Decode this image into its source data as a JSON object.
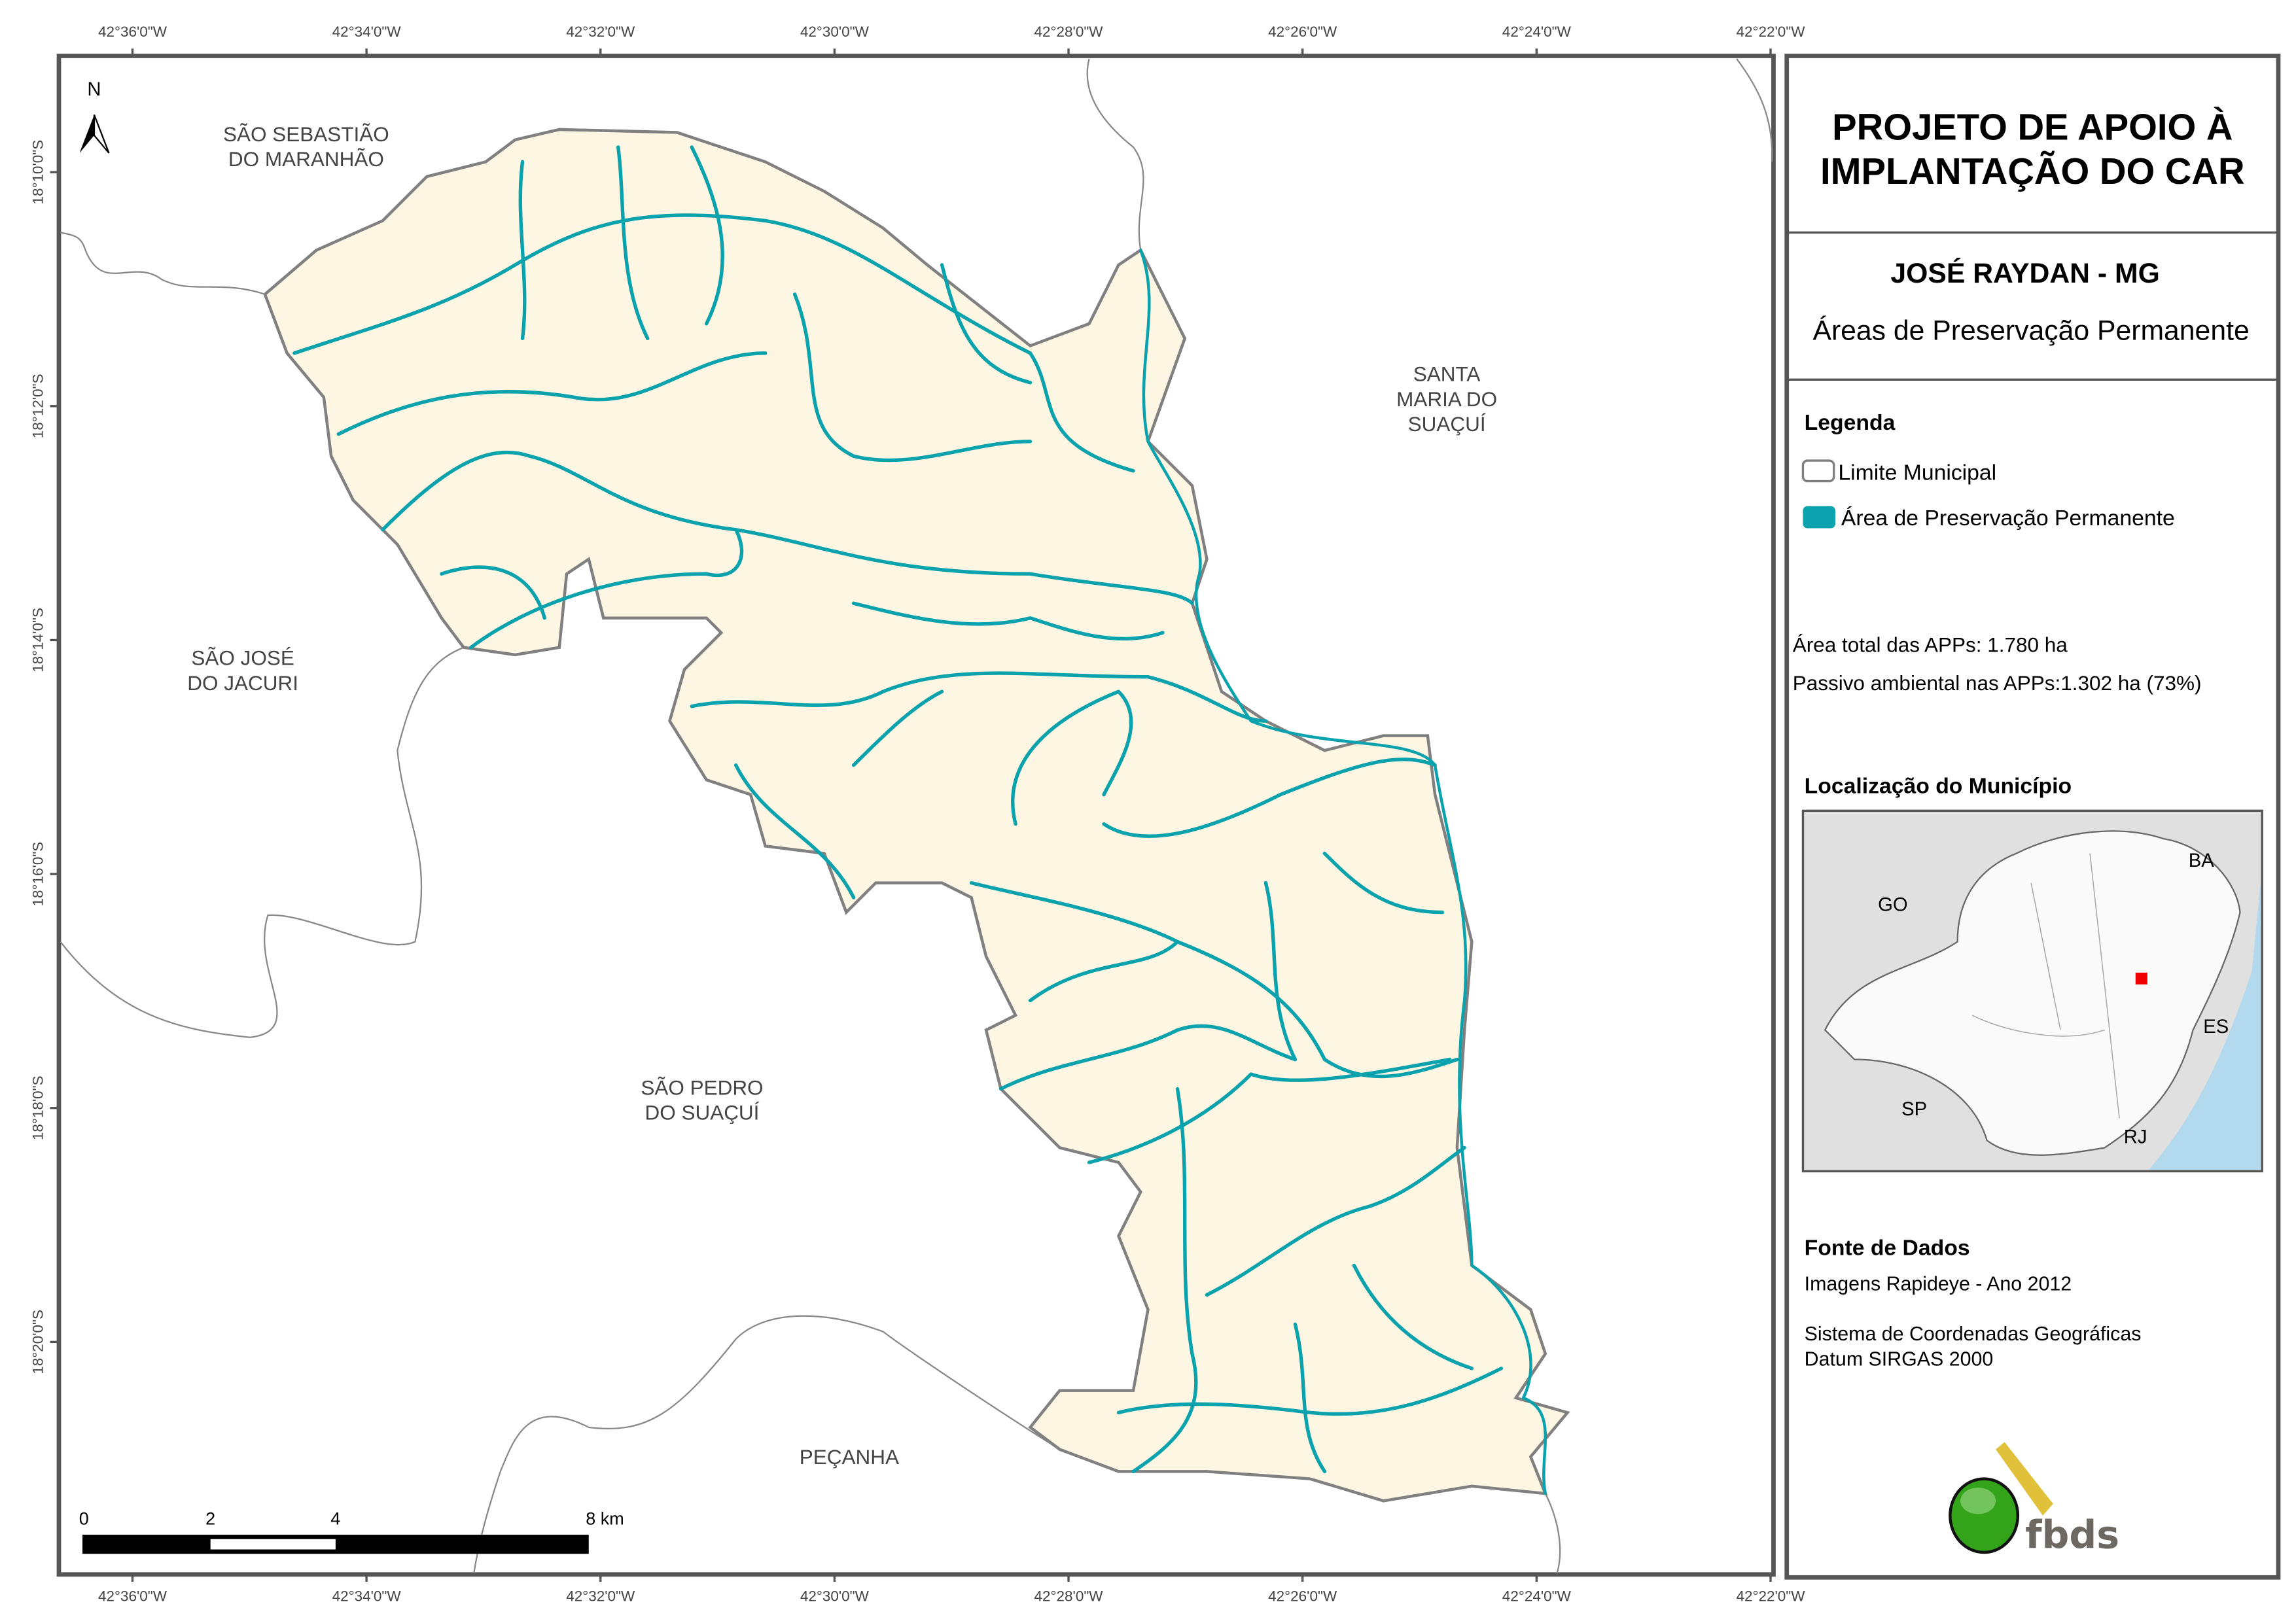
{
  "map": {
    "top_ticks": [
      "42°36'0\"W",
      "42°34'0\"W",
      "42°32'0\"W",
      "42°30'0\"W",
      "42°28'0\"W",
      "42°26'0\"W",
      "42°24'0\"W",
      "42°22'0\"W"
    ],
    "left_ticks": [
      "18°10'0\"S",
      "18°12'0\"S",
      "18°14'0\"S",
      "18°16'0\"S",
      "18°18'0\"S",
      "18°20'0\"S"
    ],
    "north_label": "N",
    "neighbors": {
      "sao_sebastiao_1": "SÃO SEBASTIÃO",
      "sao_sebastiao_2": "DO MARANHÃO",
      "santa_maria_1": "SANTA",
      "santa_maria_2": "MARIA DO",
      "santa_maria_3": "SUAÇUÍ",
      "sao_jose_1": "SÃO JOSÉ",
      "sao_jose_2": "DO JACURI",
      "sao_pedro_1": "SÃO PEDRO",
      "sao_pedro_2": "DO SUAÇUÍ",
      "pecanha": "PEÇANHA"
    },
    "scale_bar": {
      "labels": [
        "0",
        "2",
        "4",
        "8 km"
      ]
    },
    "colors": {
      "municipality_fill": "#fdf6e3",
      "app": "#0aa2ad",
      "boundary": "#808080"
    }
  },
  "panel": {
    "title_1": "PROJETO DE APOIO À",
    "title_2": "IMPLANTAÇÃO DO CAR",
    "municipality": "JOSÉ RAYDAN - MG",
    "subtitle": "Áreas de Preservação Permanente",
    "legend_title": "Legenda",
    "legend_items": [
      {
        "label": "Limite Municipal",
        "color": "#ffffff"
      },
      {
        "label": "Área de Preservação Permanente",
        "color": "#0aa2ad"
      }
    ],
    "stat_total": "Área total das APPs: 1.780 ha",
    "stat_passivo": "Passivo ambiental nas APPs:1.302 ha (73%)",
    "location_title": "Localização do Município",
    "location_labels": {
      "ba": "BA",
      "go": "GO",
      "es": "ES",
      "sp": "SP",
      "rj": "RJ"
    },
    "source_title": "Fonte de Dados",
    "source_1": "Imagens Rapideye - Ano 2012",
    "source_2": "Sistema de Coordenadas Geográficas",
    "source_3": "Datum SIRGAS 2000",
    "logo_text": "fbds"
  }
}
